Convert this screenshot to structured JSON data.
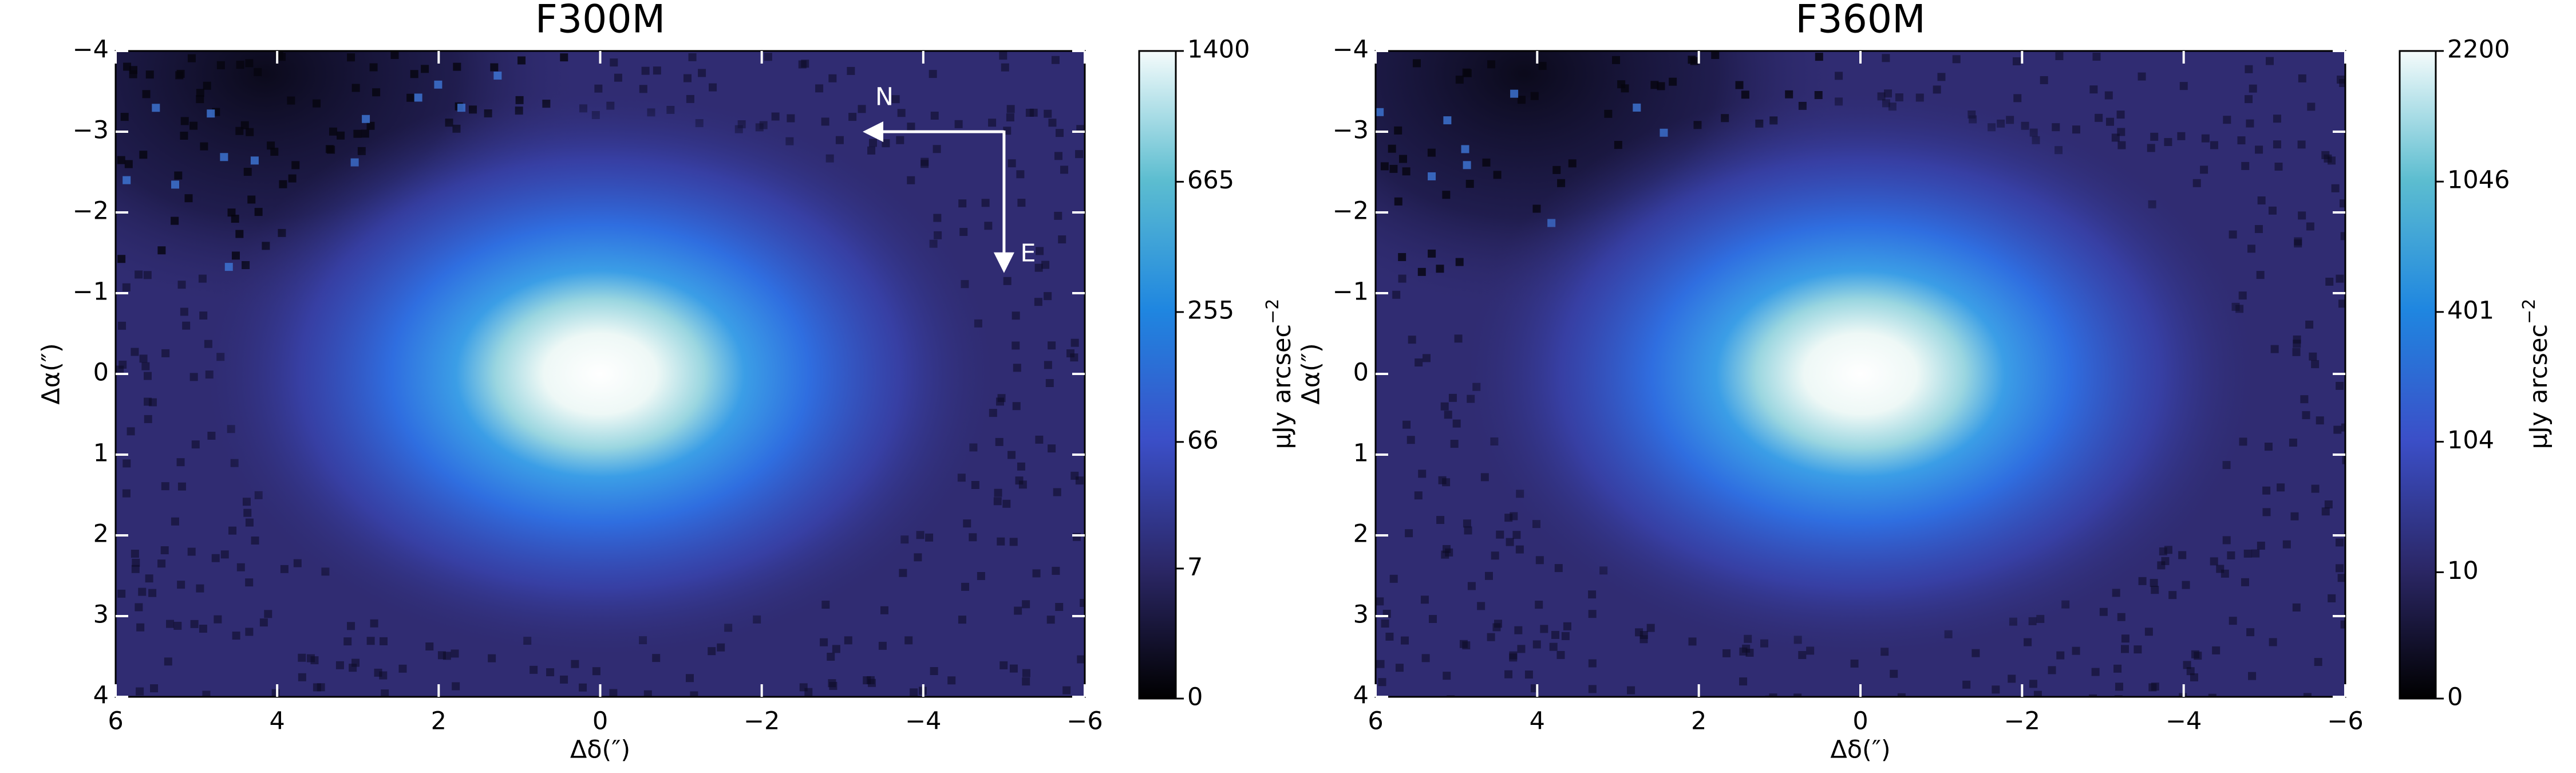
{
  "chart_data": [
    {
      "type": "image",
      "title": "F300M",
      "xlabel": "Δδ(″)",
      "ylabel": "Δα(″)",
      "xlim": [
        6,
        -6
      ],
      "ylim": [
        4,
        -4
      ],
      "xticks": [
        6,
        4,
        2,
        0,
        {
          "value": -2,
          "label": "−2"
        },
        {
          "value": -4,
          "label": "−4"
        },
        {
          "value": -6,
          "label": "−6"
        }
      ],
      "yticks": [
        {
          "value": -4,
          "label": "−4"
        },
        {
          "value": -3,
          "label": "−3"
        },
        {
          "value": -2,
          "label": "−2"
        },
        {
          "value": -1,
          "label": "−1"
        },
        0,
        1,
        2,
        3,
        4
      ],
      "clim": [
        0,
        1400
      ],
      "stretch_power": 3.3,
      "cticks": [
        0,
        7,
        66,
        255,
        665,
        1400
      ],
      "cbar_label": "μJy arcsec",
      "cbar_label_exponent": "−2",
      "annotations": [
        "N",
        "E"
      ]
    },
    {
      "type": "image",
      "title": "F360M",
      "xlabel": "Δδ(″)",
      "ylabel": "Δα(″)",
      "xlim": [
        6,
        -6
      ],
      "ylim": [
        4,
        -4
      ],
      "xticks": [
        6,
        4,
        2,
        0,
        {
          "value": -2,
          "label": "−2"
        },
        {
          "value": -4,
          "label": "−4"
        },
        {
          "value": -6,
          "label": "−6"
        }
      ],
      "yticks": [
        {
          "value": -4,
          "label": "−4"
        },
        {
          "value": -3,
          "label": "−3"
        },
        {
          "value": -2,
          "label": "−2"
        },
        {
          "value": -1,
          "label": "−1"
        },
        0,
        1,
        2,
        3,
        4
      ],
      "clim": [
        0,
        2200
      ],
      "stretch_power": 3.3,
      "cticks": [
        0,
        10,
        104,
        401,
        1046,
        2200
      ],
      "cbar_label": "μJy arcsec",
      "cbar_label_exponent": "−2"
    }
  ]
}
